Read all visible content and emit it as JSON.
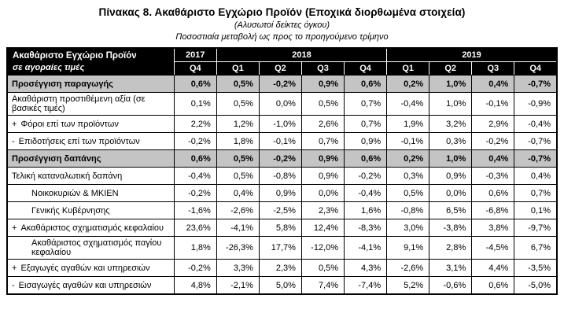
{
  "title": "Πίνακας 8. Ακαθάριστο Εγχώριο Προϊόν  (Εποχικά διορθωμένα στοιχεία)",
  "subtitle1": "(Αλυσωτοί δείκτες όγκου)",
  "subtitle2": "Ποσοστιαία μεταβολή ως προς το προηγούμενο τρίμηνο",
  "table": {
    "corner": {
      "line1": "Ακαθάριστο Εγχώριο Προϊόν",
      "line2": "σε αγοραίες τιμές"
    },
    "year_groups": [
      {
        "year": "2017",
        "quarters": [
          "Q4"
        ]
      },
      {
        "year": "2018",
        "quarters": [
          "Q1",
          "Q2",
          "Q3",
          "Q4"
        ]
      },
      {
        "year": "2019",
        "quarters": [
          "Q1",
          "Q2",
          "Q3",
          "Q4"
        ]
      }
    ],
    "rows": [
      {
        "label": "Προσέγγιση παραγωγής",
        "prefix": "",
        "style": "section",
        "values": [
          "0,6%",
          "0,5%",
          "-0,2%",
          "0,9%",
          "0,6%",
          "0,2%",
          "1,0%",
          "0,4%",
          "-0,7%"
        ]
      },
      {
        "label": "Ακαθάριστη προστιθέμενη αξία (σε βασικές τιμές)",
        "prefix": "",
        "style": "normal",
        "values": [
          "0,1%",
          "0,5%",
          "0,0%",
          "0,5%",
          "0,7%",
          "-0,4%",
          "1,0%",
          "-0,1%",
          "-0,9%"
        ]
      },
      {
        "label": "Φόροι επί των προϊόντων",
        "prefix": "+",
        "style": "normal",
        "values": [
          "2,2%",
          "1,2%",
          "-1,0%",
          "2,6%",
          "0,7%",
          "1,9%",
          "3,2%",
          "2,9%",
          "-0,4%"
        ]
      },
      {
        "label": "Επιδοτήσεις επί των προϊόντων",
        "prefix": "-",
        "style": "normal",
        "values": [
          "-0,2%",
          "1,8%",
          "-0,1%",
          "0,7%",
          "0,9%",
          "-0,1%",
          "0,3%",
          "-0,2%",
          "-0,7%"
        ]
      },
      {
        "label": "Προσέγγιση δαπάνης",
        "prefix": "",
        "style": "section",
        "values": [
          "0,6%",
          "0,5%",
          "-0,2%",
          "0,9%",
          "0,6%",
          "0,2%",
          "1,0%",
          "0,4%",
          "-0,7%"
        ]
      },
      {
        "label": "Τελική καταναλωτική δαπάνη",
        "prefix": "",
        "style": "normal",
        "values": [
          "-0,4%",
          "0,5%",
          "-0,8%",
          "0,9%",
          "-0,2%",
          "0,3%",
          "0,9%",
          "-0,3%",
          "0,4%"
        ]
      },
      {
        "label": "Νοικοκυριών & ΜΚΙΕΝ",
        "prefix": "",
        "style": "indent",
        "values": [
          "-0,2%",
          "0,4%",
          "0,9%",
          "0,0%",
          "-0,4%",
          "0,5%",
          "0,0%",
          "0,6%",
          "0,7%"
        ]
      },
      {
        "label": "Γενικής Κυβέρνησης",
        "prefix": "",
        "style": "indent",
        "values": [
          "-1,6%",
          "-2,6%",
          "-2,5%",
          "2,3%",
          "1,6%",
          "-0,8%",
          "6,5%",
          "-6,8%",
          "0,1%"
        ]
      },
      {
        "label": "Ακαθάριστος σχηματισμός κεφαλαίου",
        "prefix": "+",
        "style": "normal",
        "values": [
          "23,6%",
          "-4,1%",
          "5,8%",
          "12,4%",
          "-8,3%",
          "3,0%",
          "-3,8%",
          "3,8%",
          "-9,7%"
        ]
      },
      {
        "label": "Ακαθάριστος σχηματισμός παγίου κεφαλαίου",
        "prefix": "",
        "style": "indent",
        "values": [
          "1,8%",
          "-26,3%",
          "17,7%",
          "-12,0%",
          "-4,1%",
          "9,1%",
          "2,8%",
          "-4,5%",
          "6,7%"
        ]
      },
      {
        "label": "Εξαγωγές αγαθών και υπηρεσιών",
        "prefix": "+",
        "style": "normal",
        "values": [
          "-0,2%",
          "3,3%",
          "2,3%",
          "0,5%",
          "4,3%",
          "-2,6%",
          "3,1%",
          "4,4%",
          "-3,5%"
        ]
      },
      {
        "label": "Εισαγωγές αγαθών και υπηρεσιών",
        "prefix": "-",
        "style": "normal",
        "values": [
          "4,8%",
          "-2,1%",
          "5,0%",
          "7,4%",
          "-7,4%",
          "5,2%",
          "-0,6%",
          "0,6%",
          "-5,0%"
        ]
      }
    ]
  }
}
